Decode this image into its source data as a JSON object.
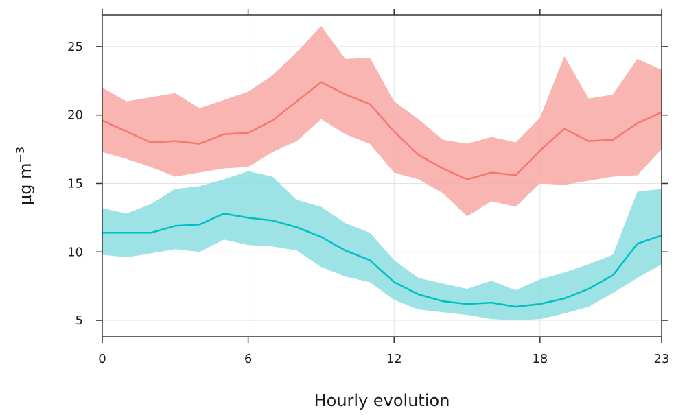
{
  "chart_data": {
    "type": "line",
    "title": "",
    "xlabel": "Hourly evolution",
    "ylabel_main": "µg m",
    "ylabel_sup": "−3",
    "xlim": [
      0,
      23
    ],
    "ylim": [
      3.8,
      27.3
    ],
    "x_ticks": [
      0,
      6,
      12,
      18,
      23
    ],
    "y_ticks": [
      5,
      10,
      15,
      20,
      25
    ],
    "grid": true,
    "legend": "none",
    "x": [
      0,
      1,
      2,
      3,
      4,
      5,
      6,
      7,
      8,
      9,
      10,
      11,
      12,
      13,
      14,
      15,
      16,
      17,
      18,
      19,
      20,
      21,
      22,
      23
    ],
    "series": [
      {
        "color": "#F8766D",
        "band_color": "#F8A8A4",
        "values": [
          19.6,
          18.8,
          18.0,
          18.1,
          17.9,
          18.6,
          18.7,
          19.6,
          21.0,
          22.4,
          21.5,
          20.8,
          18.8,
          17.1,
          16.1,
          15.3,
          15.8,
          15.6,
          17.4,
          19.0,
          18.1,
          18.2,
          19.4,
          20.2
        ],
        "upper": [
          22.0,
          21.0,
          21.3,
          21.6,
          20.5,
          21.1,
          21.7,
          22.9,
          24.6,
          26.5,
          24.1,
          24.2,
          21.0,
          19.7,
          18.2,
          17.9,
          18.4,
          18.0,
          19.8,
          24.3,
          21.2,
          21.5,
          24.1,
          23.3
        ],
        "lower": [
          17.3,
          16.8,
          16.2,
          15.5,
          15.8,
          16.1,
          16.2,
          17.3,
          18.1,
          19.7,
          18.6,
          17.9,
          15.8,
          15.3,
          14.3,
          12.6,
          13.7,
          13.3,
          15.0,
          14.9,
          15.2,
          15.5,
          15.6,
          17.5
        ]
      },
      {
        "color": "#00BFC4",
        "band_color": "#8CDDE0",
        "values": [
          11.4,
          11.4,
          11.4,
          11.9,
          12.0,
          12.8,
          12.5,
          12.3,
          11.8,
          11.1,
          10.1,
          9.4,
          7.8,
          6.9,
          6.4,
          6.2,
          6.3,
          6.0,
          6.2,
          6.6,
          7.3,
          8.3,
          10.6,
          11.2
        ],
        "upper": [
          13.2,
          12.8,
          13.5,
          14.6,
          14.8,
          15.3,
          15.9,
          15.5,
          13.8,
          13.3,
          12.1,
          11.4,
          9.4,
          8.1,
          7.7,
          7.3,
          7.9,
          7.2,
          8.0,
          8.5,
          9.1,
          9.8,
          14.4,
          14.6
        ],
        "lower": [
          9.8,
          9.6,
          9.9,
          10.2,
          10.0,
          10.9,
          10.5,
          10.4,
          10.1,
          8.9,
          8.2,
          7.8,
          6.5,
          5.8,
          5.6,
          5.4,
          5.1,
          5.0,
          5.1,
          5.5,
          6.0,
          7.0,
          8.1,
          9.1
        ]
      }
    ]
  }
}
